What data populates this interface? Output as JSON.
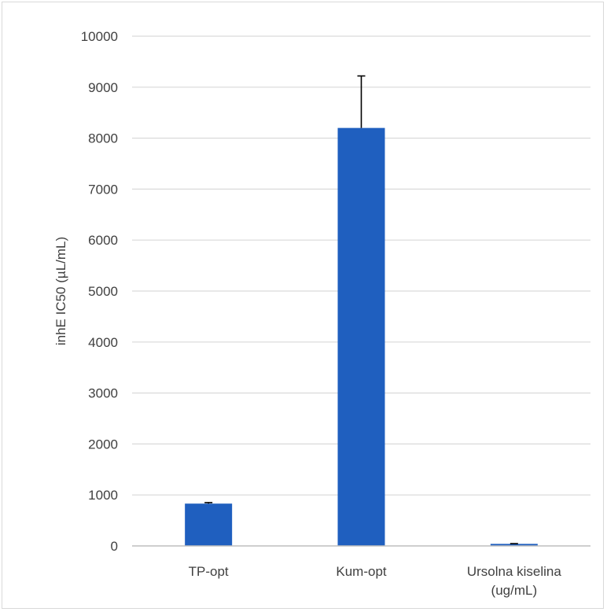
{
  "chart_data": {
    "type": "bar",
    "title": "",
    "xlabel": "",
    "ylabel": "inhE IC50 (µL/mL)",
    "categories": [
      [
        "TP-opt"
      ],
      [
        "Kum-opt"
      ],
      [
        "Ursolna kiselina",
        "(ug/mL)"
      ]
    ],
    "values": [
      830,
      8200,
      40
    ],
    "error": [
      20,
      1020,
      5
    ],
    "ylim": [
      0,
      10000
    ],
    "yticks": [
      0,
      1000,
      2000,
      3000,
      4000,
      5000,
      6000,
      7000,
      8000,
      9000,
      10000
    ],
    "grid": true,
    "bar_color": "#1f5fbf",
    "grid_color": "#d9d9d9",
    "axis_color": "#bfbfbf"
  }
}
